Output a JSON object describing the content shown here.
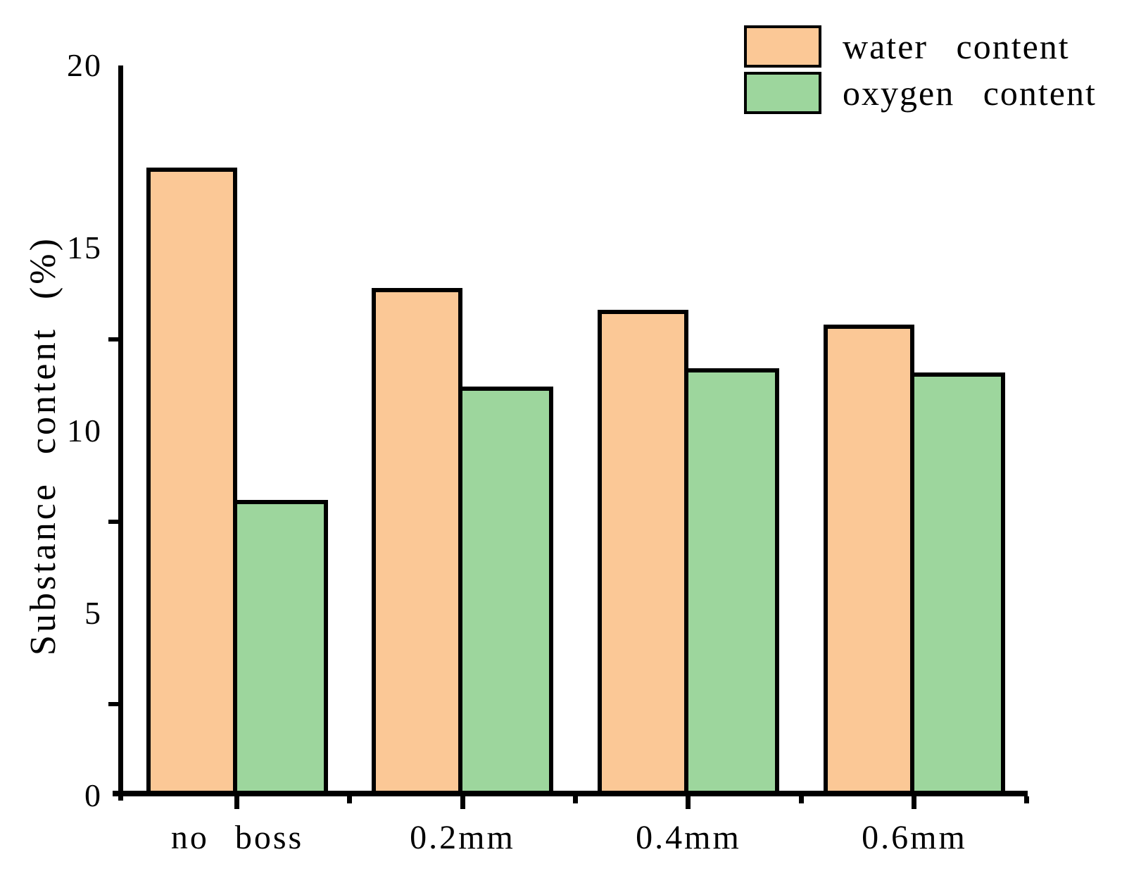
{
  "chart_data": {
    "type": "bar",
    "title": "",
    "categories": [
      "no boss",
      "0.2mm",
      "0.4mm",
      "0.6mm"
    ],
    "series": [
      {
        "name": "water content",
        "color": "#FBC896",
        "values": [
          17.2,
          13.9,
          13.3,
          12.9
        ]
      },
      {
        "name": "oxygen content",
        "color": "#9DD69D",
        "values": [
          8.1,
          11.2,
          11.7,
          11.6
        ]
      }
    ],
    "xlabel": "",
    "ylabel": "Substance content (%)",
    "ylim": [
      0,
      20
    ],
    "y_major_ticks": [
      0,
      5,
      10,
      15,
      20
    ],
    "y_minor_ticks": [
      2.5,
      7.5,
      12.5
    ],
    "grid": false,
    "legend_position": "top-right",
    "bar_edge_color": "#000000",
    "axis_color": "#000000",
    "background_color": "#FFFFFF"
  }
}
